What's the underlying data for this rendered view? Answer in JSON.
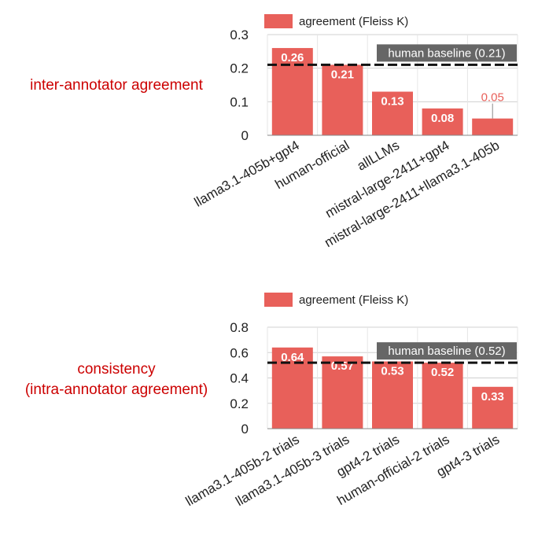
{
  "chart_data": [
    {
      "type": "bar",
      "legend_position": "top",
      "grid": true,
      "side_label": [
        "inter-annotator agreement"
      ],
      "series": [
        {
          "name": "agreement (Fleiss K)",
          "color": "#E8605A",
          "values": [
            0.26,
            0.21,
            0.13,
            0.08,
            0.05
          ]
        }
      ],
      "categories": [
        "llama3.1-405b+gpt4",
        "human-official",
        "allLLMs",
        "mistral-large-2411+gpt4",
        "mistral-large-2411+llama3.1-405b"
      ],
      "value_labels": [
        "0.26",
        "0.21",
        "0.13",
        "0.08",
        "0.05"
      ],
      "ylim": [
        0,
        0.3
      ],
      "yticks": [
        0,
        0.1,
        0.2,
        0.3
      ],
      "ytick_labels": [
        "0",
        "0.1",
        "0.2",
        "0.3"
      ],
      "baseline": {
        "value": 0.21,
        "label": "human baseline (0.21)"
      }
    },
    {
      "type": "bar",
      "legend_position": "top",
      "grid": true,
      "side_label": [
        "consistency",
        "(intra-annotator agreement)"
      ],
      "series": [
        {
          "name": "agreement (Fleiss K)",
          "color": "#E8605A",
          "values": [
            0.64,
            0.57,
            0.53,
            0.52,
            0.33
          ]
        }
      ],
      "categories": [
        "llama3.1-405b-2 trials",
        "llama3.1-405b-3 trials",
        "gpt4-2 trials",
        "human-official-2 trials",
        "gpt4-3 trials"
      ],
      "value_labels": [
        "0.64",
        "0.57",
        "0.53",
        "0.52",
        "0.33"
      ],
      "ylim": [
        0,
        0.8
      ],
      "yticks": [
        0,
        0.2,
        0.4,
        0.6,
        0.8
      ],
      "ytick_labels": [
        "0",
        "0.2",
        "0.4",
        "0.6",
        "0.8"
      ],
      "baseline": {
        "value": 0.52,
        "label": "human baseline (0.52)"
      }
    }
  ],
  "colors": {
    "bar": "#E8605A",
    "side_label": "#CC0000",
    "baseline_box": "#666666",
    "grid": "#D0D0D0",
    "text": "#222222"
  }
}
